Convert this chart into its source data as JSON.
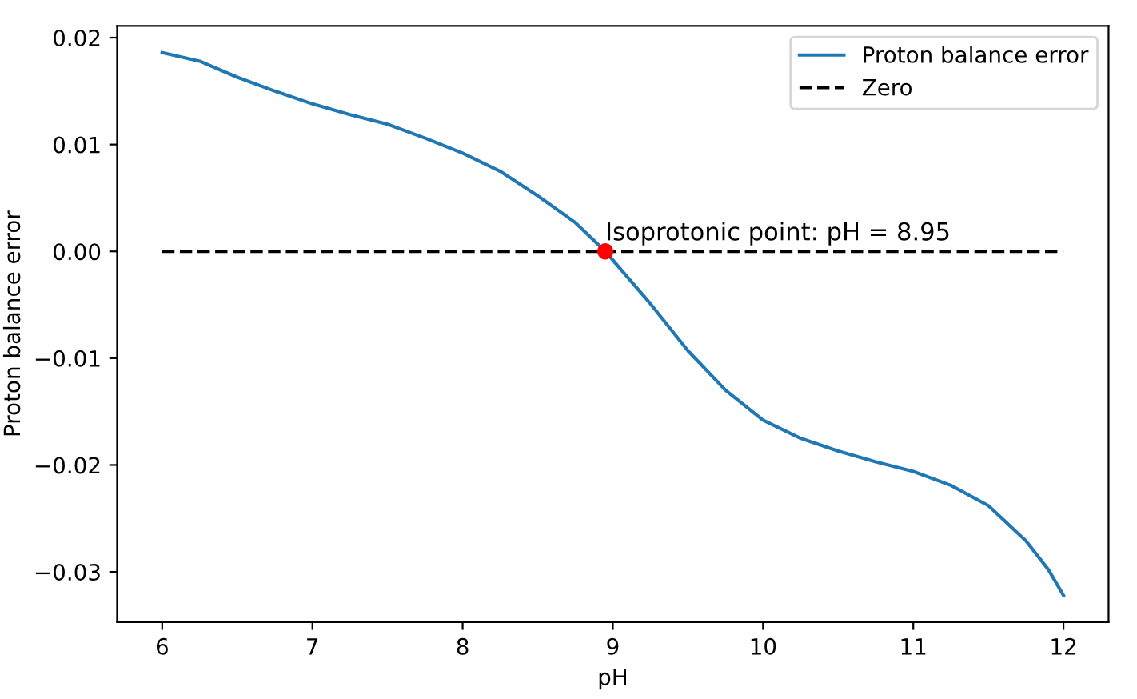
{
  "chart_data": {
    "type": "line",
    "xlabel": "pH",
    "ylabel": "Proton balance error",
    "xlim": [
      5.7,
      12.3
    ],
    "xticks": [
      6,
      7,
      8,
      9,
      10,
      11,
      12
    ],
    "ylim": [
      -0.0347,
      0.0211
    ],
    "yticks": [
      {
        "value": -0.03,
        "label": "−0.03"
      },
      {
        "value": -0.02,
        "label": "−0.02"
      },
      {
        "value": -0.01,
        "label": "−0.01"
      },
      {
        "value": 0,
        "label": "0.00"
      },
      {
        "value": 0.01,
        "label": "0.01"
      },
      {
        "value": 0.02,
        "label": "0.02"
      }
    ],
    "series": [
      {
        "name": "Proton balance error",
        "color": "#1f77b4",
        "line_style": "solid",
        "x": [
          6,
          6.25,
          6.5,
          6.75,
          7,
          7.25,
          7.5,
          7.75,
          8,
          8.25,
          8.5,
          8.75,
          8.95,
          9.25,
          9.5,
          9.75,
          10,
          10.25,
          10.5,
          10.75,
          11,
          11.25,
          11.5,
          11.75,
          11.9,
          12
        ],
        "values": [
          0.0186,
          0.0178,
          0.0163,
          0.015,
          0.0138,
          0.0128,
          0.0119,
          0.0106,
          0.0092,
          0.0075,
          0.0052,
          0.0027,
          0,
          -0.0049,
          -0.0093,
          -0.013,
          -0.0158,
          -0.0175,
          -0.0187,
          -0.0197,
          -0.0206,
          -0.0219,
          -0.0238,
          -0.0271,
          -0.0298,
          -0.0322
        ]
      },
      {
        "name": "Zero",
        "color": "#000000",
        "line_style": "dashed",
        "x": [
          6,
          12
        ],
        "values": [
          0,
          0
        ]
      },
      {
        "type": "scatter",
        "color": "#ff0000",
        "marker": "circle",
        "x": [
          8.95
        ],
        "values": [
          0
        ]
      }
    ],
    "annotations": [
      {
        "text": "Isoprotonic point: pH = 8.95",
        "x": 8.95,
        "y": 0
      }
    ],
    "legend": "top right"
  }
}
